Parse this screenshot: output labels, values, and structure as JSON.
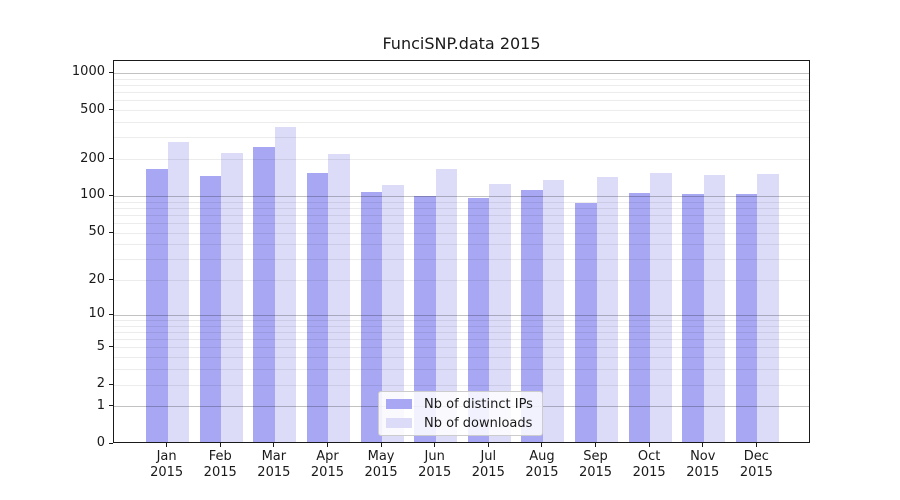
{
  "chart_data": {
    "type": "bar",
    "title": "FunciSNP.data 2015",
    "categories": [
      "Jan",
      "Feb",
      "Mar",
      "Apr",
      "May",
      "Jun",
      "Jul",
      "Aug",
      "Sep",
      "Oct",
      "Nov",
      "Dec"
    ],
    "year": "2015",
    "series": [
      {
        "name": "Nb of distinct IPs",
        "color": "#a7a7f3",
        "values": [
          168,
          146,
          254,
          156,
          109,
          101,
          97,
          113,
          88,
          107,
          104,
          105
        ]
      },
      {
        "name": "Nb of downloads",
        "color": "#dcdcf9",
        "values": [
          278,
          225,
          370,
          223,
          124,
          167,
          127,
          136,
          144,
          155,
          149,
          152
        ]
      }
    ],
    "xlabel": "",
    "ylabel": "",
    "y_ticks": [
      1000,
      500,
      200,
      100,
      50,
      20,
      10,
      5,
      2,
      1,
      0
    ],
    "ylim": [
      0,
      1000
    ],
    "y_scale": "log10(1+x)",
    "grid": "horizontal",
    "legend_position": "bottom-center",
    "colors": {
      "frame": "#1a1a1a",
      "grid_major": "#c2c2c2",
      "grid_minor": "#ededed",
      "background": "#ffffff",
      "text": "#1a1a1a"
    }
  }
}
